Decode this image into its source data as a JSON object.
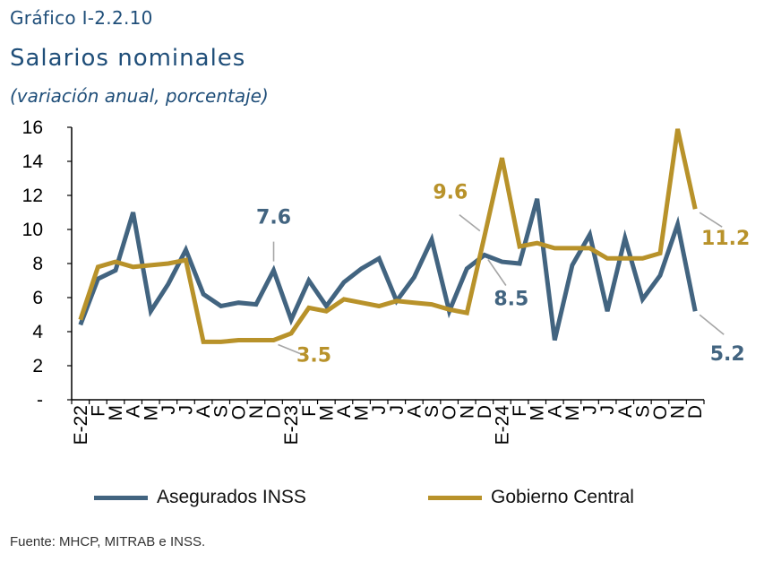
{
  "header": {
    "figure_label": "Gráfico I-2.2.10",
    "title": "Salarios nominales",
    "subtitle": "(variación anual, porcentaje)"
  },
  "source": "Fuente: MHCP, MITRAB e INSS.",
  "colors": {
    "asegurados": "#426480",
    "gobierno": "#b8922a",
    "axis": "#000000",
    "leader": "#a6a6a6"
  },
  "chart_data": {
    "type": "line",
    "ylim": [
      0,
      16
    ],
    "yticks": [
      0,
      2,
      4,
      6,
      8,
      10,
      12,
      14,
      16
    ],
    "ytick_labels": [
      "-",
      "2",
      "4",
      "6",
      "8",
      "10",
      "12",
      "14",
      "16"
    ],
    "grid": false,
    "legend_position": "bottom",
    "categories": [
      "E-22",
      "F",
      "M",
      "A",
      "M",
      "J",
      "J",
      "A",
      "S",
      "O",
      "N",
      "D",
      "E-23",
      "F",
      "M",
      "A",
      "M",
      "J",
      "J",
      "A",
      "S",
      "O",
      "N",
      "D",
      "E-24",
      "F",
      "M",
      "A",
      "M",
      "J",
      "J",
      "A",
      "S",
      "O",
      "N",
      "D"
    ],
    "series": [
      {
        "name": "Asegurados INSS",
        "color": "#426480",
        "values": [
          4.4,
          7.1,
          7.6,
          11.0,
          5.2,
          6.8,
          8.8,
          6.2,
          5.5,
          5.7,
          5.6,
          7.6,
          4.7,
          7.0,
          5.5,
          6.9,
          7.7,
          8.3,
          5.8,
          7.2,
          9.4,
          5.2,
          7.7,
          8.5,
          8.1,
          8.0,
          11.8,
          3.5,
          7.9,
          9.7,
          5.2,
          9.5,
          5.9,
          7.3,
          10.3,
          5.2
        ]
      },
      {
        "name": "Gobierno Central",
        "color": "#b8922a",
        "values": [
          4.7,
          7.8,
          8.1,
          7.8,
          7.9,
          8.0,
          8.2,
          3.4,
          3.4,
          3.5,
          3.5,
          3.5,
          3.9,
          5.4,
          5.2,
          5.9,
          5.7,
          5.5,
          5.8,
          5.7,
          5.6,
          5.3,
          5.1,
          9.6,
          14.2,
          9.0,
          9.2,
          8.9,
          8.9,
          8.9,
          8.3,
          8.3,
          8.3,
          8.6,
          15.9,
          11.2
        ]
      }
    ],
    "annotations": [
      {
        "text": "7.6",
        "series": 0,
        "index": 11
      },
      {
        "text": "3.5",
        "series": 1,
        "index": 11
      },
      {
        "text": "9.6",
        "series": 1,
        "index": 23
      },
      {
        "text": "8.5",
        "series": 0,
        "index": 23
      },
      {
        "text": "11.2",
        "series": 1,
        "index": 35
      },
      {
        "text": "5.2",
        "series": 0,
        "index": 35
      }
    ]
  }
}
